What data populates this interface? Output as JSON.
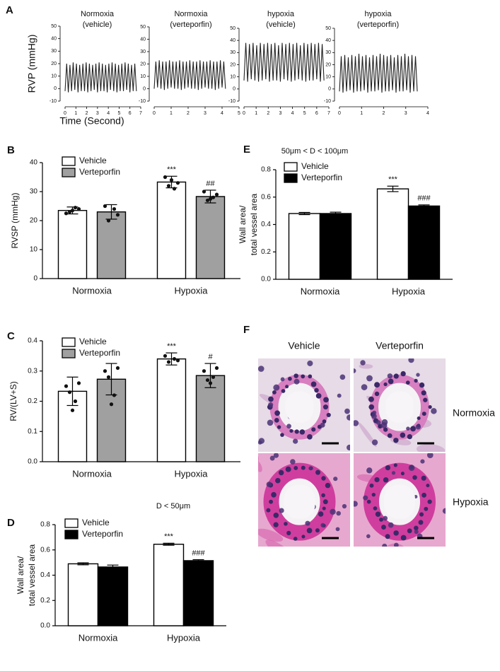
{
  "chart_data": [
    {
      "type": "line",
      "panel_label": "A",
      "title": "Normoxia",
      "subtitle": "(vehicle)",
      "ylabel": "RVP (mmHg)",
      "xlabel": "Time (Second)",
      "color": "#222222",
      "xlim": [
        0,
        7
      ],
      "xticks": [
        0,
        1,
        2,
        3,
        4,
        5,
        6,
        7
      ],
      "ylim": [
        -10,
        50
      ],
      "yticks": [
        -10,
        0,
        10,
        20,
        30,
        40,
        50
      ],
      "x": [
        0,
        0.15,
        0.3,
        0.45,
        0.6,
        0.75,
        0.9,
        1.05,
        1.2,
        1.35,
        1.5,
        1.65,
        1.8,
        1.95,
        2.1,
        2.25,
        2.4,
        2.55,
        2.7,
        2.85,
        3,
        3.15,
        3.3,
        3.45,
        3.6,
        3.75,
        3.9,
        4.05,
        4.2,
        4.35,
        4.5,
        4.65,
        4.8,
        4.95,
        5.1,
        5.25,
        5.4,
        5.55,
        5.7,
        5.85,
        6,
        6.15,
        6.3,
        6.45,
        6.6
      ],
      "values": [
        -2,
        20,
        -3,
        19,
        -2,
        21,
        -1,
        20,
        -3,
        19,
        -2,
        20,
        -2,
        21,
        -3,
        20,
        -2,
        19,
        -1,
        20,
        -3,
        21,
        -2,
        20,
        -2,
        19,
        -3,
        20,
        -1,
        21,
        -2,
        20,
        -3,
        19,
        -2,
        20,
        -2,
        21,
        -1,
        20,
        -3,
        19,
        -2,
        20,
        -2
      ]
    },
    {
      "type": "line",
      "title": "Normoxia",
      "subtitle": "(verteporfin)",
      "color": "#222222",
      "xlim": [
        0,
        5
      ],
      "xticks": [
        0,
        1,
        2,
        3,
        4,
        5
      ],
      "ylim": [
        -10,
        50
      ],
      "yticks": [
        -10,
        0,
        10,
        20,
        30,
        40,
        50
      ],
      "x": [
        0,
        0.1,
        0.2,
        0.3,
        0.4,
        0.5,
        0.6,
        0.7,
        0.8,
        0.9,
        1,
        1.1,
        1.2,
        1.3,
        1.4,
        1.5,
        1.6,
        1.7,
        1.8,
        1.9,
        2,
        2.1,
        2.2,
        2.3,
        2.4,
        2.5,
        2.6,
        2.7,
        2.8,
        2.9,
        3,
        3.1,
        3.2,
        3.3,
        3.4,
        3.5,
        3.6,
        3.7,
        3.8,
        3.9,
        4,
        4.1,
        4.2
      ],
      "values": [
        0,
        22,
        1,
        23,
        0,
        22,
        -1,
        22,
        0,
        23,
        1,
        22,
        0,
        22,
        0,
        23,
        -1,
        22,
        0,
        22,
        1,
        23,
        0,
        22,
        0,
        22,
        -1,
        23,
        0,
        22,
        1,
        22,
        0,
        23,
        0,
        22,
        -1,
        22,
        0,
        23,
        1,
        22,
        0
      ]
    },
    {
      "type": "line",
      "title": "hypoxia",
      "subtitle": "(vehicle)",
      "color": "#222222",
      "xlim": [
        0,
        7
      ],
      "xticks": [
        0,
        1,
        2,
        3,
        4,
        5,
        6,
        7
      ],
      "ylim": [
        -10,
        50
      ],
      "yticks": [
        -10,
        0,
        10,
        20,
        30,
        40,
        50
      ],
      "x": [
        0,
        0.15,
        0.3,
        0.45,
        0.6,
        0.75,
        0.9,
        1.05,
        1.2,
        1.35,
        1.5,
        1.65,
        1.8,
        1.95,
        2.1,
        2.25,
        2.4,
        2.55,
        2.7,
        2.85,
        3,
        3.15,
        3.3,
        3.45,
        3.6,
        3.75,
        3.9,
        4.05,
        4.2,
        4.35,
        4.5,
        4.65,
        4.8,
        4.95,
        5.1,
        5.25,
        5.4,
        5.55,
        5.7,
        5.85,
        6,
        6.15,
        6.3,
        6.45,
        6.6
      ],
      "values": [
        7,
        38,
        6,
        37,
        8,
        38,
        7,
        36,
        6,
        38,
        7,
        37,
        8,
        38,
        6,
        37,
        7,
        38,
        7,
        36,
        6,
        38,
        8,
        37,
        7,
        38,
        6,
        37,
        7,
        38,
        8,
        36,
        7,
        38,
        6,
        37,
        7,
        38,
        7,
        37,
        8,
        38,
        6,
        37,
        7
      ]
    },
    {
      "type": "line",
      "title": "hypoxia",
      "subtitle": "(verteporfin)",
      "color": "#222222",
      "xlim": [
        0,
        4
      ],
      "xticks": [
        0,
        1,
        2,
        3,
        4
      ],
      "ylim": [
        -10,
        50
      ],
      "yticks": [
        -10,
        0,
        10,
        20,
        30,
        40,
        50
      ],
      "x": [
        0,
        0.08,
        0.16,
        0.24,
        0.32,
        0.4,
        0.48,
        0.56,
        0.64,
        0.72,
        0.8,
        0.88,
        0.96,
        1.04,
        1.12,
        1.2,
        1.28,
        1.36,
        1.44,
        1.52,
        1.6,
        1.68,
        1.76,
        1.84,
        1.92,
        2,
        2.08,
        2.16,
        2.24,
        2.32,
        2.4,
        2.48,
        2.56,
        2.64,
        2.72,
        2.8,
        2.88,
        2.96,
        3.04,
        3.12,
        3.2,
        3.28,
        3.36,
        3.44,
        3.52
      ],
      "values": [
        -2,
        27,
        -3,
        28,
        -2,
        26,
        -1,
        28,
        -3,
        27,
        -2,
        29,
        -2,
        27,
        -1,
        28,
        -3,
        26,
        -2,
        28,
        -2,
        27,
        -1,
        29,
        -3,
        28,
        -2,
        27,
        -2,
        28,
        -1,
        26,
        -3,
        28,
        -2,
        27,
        -2,
        29,
        -1,
        27,
        -3,
        28,
        -2,
        27,
        -2
      ]
    },
    {
      "type": "bar",
      "panel_label": "B",
      "ylabel": "RVSP (mmHg)",
      "legend": "upper left",
      "categories": [
        "Normoxia",
        "Hypoxia"
      ],
      "ylim": [
        0,
        40
      ],
      "yticks": [
        0,
        10,
        20,
        30,
        40
      ],
      "series": [
        {
          "name": "Vehicle",
          "color": "#ffffff",
          "values": [
            23.5,
            33.3
          ],
          "errors": [
            1.2,
            2
          ],
          "annotations": [
            null,
            "***"
          ],
          "points": [
            [
              22.5,
              24,
              23,
              24.5,
              23.5
            ],
            [
              35,
              33,
              32,
              31,
              34
            ]
          ]
        },
        {
          "name": "Verteporfin",
          "color": "#a0a0a0",
          "values": [
            23,
            28.3
          ],
          "errors": [
            2.5,
            2.2
          ],
          "annotations": [
            null,
            "##"
          ],
          "points": [
            [
              25,
              22,
              20,
              24
            ],
            [
              30,
              29,
              27,
              28,
              27.5
            ]
          ]
        }
      ]
    },
    {
      "type": "bar",
      "panel_label": "C",
      "ylabel": "RV/(LV+S)",
      "legend": "upper left",
      "categories": [
        "Normoxia",
        "Hypoxia"
      ],
      "ylim": [
        0,
        0.4
      ],
      "yticks": [
        {
          "value": 0,
          "label": "0.0"
        },
        0.1,
        0.2,
        0.3,
        0.4
      ],
      "series": [
        {
          "name": "Vehicle",
          "color": "#ffffff",
          "values": [
            0.233,
            0.34
          ],
          "errors": [
            0.047,
            0.02
          ],
          "annotations": [
            null,
            "***"
          ],
          "points": [
            [
              0.25,
              0.26,
              0.23,
              0.2,
              0.17
            ],
            [
              0.35,
              0.335,
              0.33,
              0.34
            ]
          ]
        },
        {
          "name": "Verteporfin",
          "color": "#a0a0a0",
          "values": [
            0.273,
            0.285
          ],
          "errors": [
            0.052,
            0.04
          ],
          "annotations": [
            null,
            "#"
          ],
          "points": [
            [
              0.3,
              0.31,
              0.28,
              0.22,
              0.19
            ],
            [
              0.3,
              0.31,
              0.27,
              0.28,
              0.26
            ]
          ]
        }
      ]
    },
    {
      "type": "bar",
      "panel_label": "D",
      "title": "D < 50μm",
      "ylabel": [
        "Wall area/",
        "total vessel area"
      ],
      "legend": "upper left",
      "categories": [
        "Normoxia",
        "Hypoxia"
      ],
      "ylim": [
        0,
        0.8
      ],
      "yticks": [
        {
          "value": 0,
          "label": "0.0"
        },
        0.2,
        0.4,
        0.6,
        0.8
      ],
      "series": [
        {
          "name": "Vehicle",
          "color": "#ffffff",
          "values": [
            0.49,
            0.645
          ],
          "errors": [
            0.008,
            0.008
          ],
          "annotations": [
            null,
            "***"
          ]
        },
        {
          "name": "Verteporfin",
          "color": "#000000",
          "values": [
            0.465,
            0.515
          ],
          "errors": [
            0.015,
            0.008
          ],
          "annotations": [
            null,
            "###"
          ]
        }
      ]
    },
    {
      "type": "bar",
      "panel_label": "E",
      "title": "50μm < D < 100μm",
      "ylabel": [
        "Wall area/",
        "total vessel area"
      ],
      "legend": "upper left",
      "categories": [
        "Normoxia",
        "Hypoxia"
      ],
      "ylim": [
        0,
        0.8
      ],
      "yticks": [
        {
          "value": 0,
          "label": "0.0"
        },
        0.2,
        0.4,
        0.6,
        0.8
      ],
      "series": [
        {
          "name": "Vehicle",
          "color": "#ffffff",
          "values": [
            0.48,
            0.66
          ],
          "errors": [
            0.008,
            0.02
          ],
          "annotations": [
            null,
            "***"
          ]
        },
        {
          "name": "Verteporfin",
          "color": "#000000",
          "values": [
            0.48,
            0.535
          ],
          "errors": [
            0.01,
            0.008
          ],
          "annotations": [
            null,
            "###"
          ]
        }
      ]
    }
  ],
  "image_panel": {
    "panel_label": "F",
    "columns": [
      "Vehicle",
      "Verteporfin"
    ],
    "rows": [
      "Normoxia",
      "Hypoxia"
    ]
  }
}
